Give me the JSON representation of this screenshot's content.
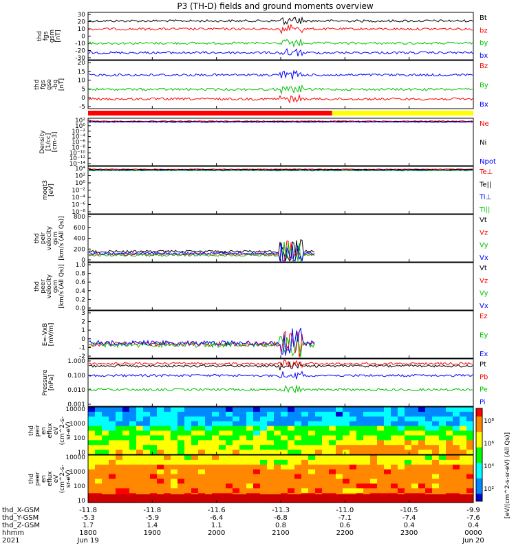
{
  "chart_data": {
    "title": "P3 (TH-D) fields and ground moments overview",
    "x_axis": {
      "rows": [
        {
          "label": "thd_X-GSM",
          "values": [
            "-11.8",
            "-11.8",
            "-11.6",
            "-11.3",
            "-11.0",
            "-10.5",
            "-9.9"
          ]
        },
        {
          "label": "thd_Y-GSM",
          "values": [
            "-5.3",
            "-5.9",
            "-6.4",
            "-6.8",
            "-7.1",
            "-7.4",
            "-7.6"
          ]
        },
        {
          "label": "thd_Z-GSM",
          "values": [
            "1.7",
            "1.4",
            "1.1",
            "0.8",
            "0.6",
            "0.4",
            "0.4"
          ]
        },
        {
          "label": "hhmm",
          "values": [
            "1800",
            "1900",
            "2000",
            "2100",
            "2200",
            "2300",
            "0000"
          ]
        }
      ],
      "year": "2021",
      "date_start": "Jun 19",
      "date_end": "Jun 20"
    },
    "panels": [
      {
        "ylabel": [
          "thd",
          "fgs",
          "gsm",
          "[nT]"
        ],
        "type": "line",
        "ticks": [
          "30",
          "20",
          "10",
          "0",
          "-10",
          "-20",
          "-30"
        ],
        "ylim": [
          -30,
          30
        ],
        "legend": [
          {
            "name": "Bt",
            "color": "#000000"
          },
          {
            "name": "bz",
            "color": "#ff0000"
          },
          {
            "name": "by",
            "color": "#00c000"
          },
          {
            "name": "bx",
            "color": "#0000ff"
          }
        ]
      },
      {
        "ylabel": [
          "thd",
          "fgs",
          "gse",
          "-bg",
          "[nT]"
        ],
        "type": "line",
        "ticks": [
          "20",
          "15",
          "10",
          "5",
          "0",
          "-5"
        ],
        "ylim": [
          -8,
          20
        ],
        "legend": [
          {
            "name": "Bz",
            "color": "#ff0000"
          },
          {
            "name": "By",
            "color": "#00c000"
          },
          {
            "name": "Bx",
            "color": "#0000ff"
          }
        ]
      },
      {
        "ylabel": [
          "Density",
          "[1/cc]",
          "[cm-3]"
        ],
        "type": "line",
        "scale": "log",
        "ticks": [
          "10²",
          "10⁰",
          "10⁻²",
          "10⁻⁴",
          "10⁻⁶",
          "10⁻⁸",
          "10⁻¹⁰",
          "10⁻¹²",
          "10⁻¹⁴"
        ],
        "legend": [
          {
            "name": "Ne",
            "color": "#ff0000"
          },
          {
            "name": "Ni",
            "color": "#000000"
          },
          {
            "name": "Npot",
            "color": "#0000ff"
          }
        ]
      },
      {
        "ylabel": [
          "moqt3",
          "[eV]"
        ],
        "type": "line",
        "scale": "log",
        "ticks": [
          "10⁴",
          "10²",
          "10⁰",
          "10⁻²",
          "10⁻⁴",
          "10⁻⁶",
          "10⁻⁸"
        ],
        "legend": [
          {
            "name": "Te⊥",
            "color": "#ff0000"
          },
          {
            "name": "Te||",
            "color": "#000000"
          },
          {
            "name": "Ti⊥",
            "color": "#0000ff"
          },
          {
            "name": "Ti||",
            "color": "#00c000"
          }
        ]
      },
      {
        "ylabel": [
          "thd",
          "peir",
          "velocity",
          "gsm",
          "[km/s (All Qs)]"
        ],
        "type": "line",
        "ticks": [
          "800",
          "600",
          "400",
          "200",
          "0"
        ],
        "ylim": [
          -40,
          800
        ],
        "legend": [
          {
            "name": "Vt",
            "color": "#000000"
          },
          {
            "name": "Vz",
            "color": "#ff0000"
          },
          {
            "name": "Vy",
            "color": "#00c000"
          },
          {
            "name": "Vx",
            "color": "#0000ff"
          }
        ]
      },
      {
        "ylabel": [
          "thd",
          "peer",
          "velocity",
          "gsm",
          "[km/s (All Qs)]"
        ],
        "type": "line",
        "ticks": [
          "1.0",
          "0.8",
          "0.6",
          "0.4",
          "0.2",
          "0.0"
        ],
        "ylim": [
          0,
          1
        ],
        "legend": [
          {
            "name": "Vt",
            "color": "#000000"
          },
          {
            "name": "Vz",
            "color": "#ff0000"
          },
          {
            "name": "Vy",
            "color": "#00c000"
          },
          {
            "name": "Vx",
            "color": "#0000ff"
          }
        ]
      },
      {
        "ylabel": [
          "E=-VxB",
          "[mV/m]"
        ],
        "type": "line",
        "ticks": [
          "3",
          "2",
          "1",
          "0",
          "-1",
          "-2"
        ],
        "ylim": [
          -2,
          3
        ],
        "legend": [
          {
            "name": "Ez",
            "color": "#ff0000"
          },
          {
            "name": "Ey",
            "color": "#00c000"
          },
          {
            "name": "Ex",
            "color": "#0000ff"
          }
        ]
      },
      {
        "ylabel": [
          "Pressure",
          "[nPa]"
        ],
        "type": "line",
        "scale": "log",
        "ticks": [
          "1.000",
          "0.100",
          "0.010",
          "0.001"
        ],
        "legend": [
          {
            "name": "Pt",
            "color": "#000000"
          },
          {
            "name": "Pb",
            "color": "#ff0000"
          },
          {
            "name": "Pe",
            "color": "#00c000"
          },
          {
            "name": "Pi",
            "color": "#0000ff"
          }
        ]
      },
      {
        "ylabel": [
          "thd",
          "peir",
          "en",
          "eflux",
          "eV",
          "(cm^2-s-",
          "sr-eV)"
        ],
        "type": "heatmap",
        "ticks": [
          "10000",
          "1000",
          "100",
          "10"
        ]
      },
      {
        "ylabel": [
          "thd",
          "peer",
          "en",
          "eflux",
          "eV",
          "(cm^2-s-",
          "sr-eV)"
        ],
        "type": "heatmap",
        "ticks": [
          "10000",
          "1000",
          "100",
          "10"
        ]
      }
    ],
    "colorbar": {
      "label": "[eV/(cm^2-s-sr-eV) (All Qs)]",
      "ticks": [
        "10⁸",
        "10⁶",
        "10⁴",
        "10²"
      ]
    },
    "status_bar": {
      "segments": [
        {
          "from_hhmm": "1800",
          "to_hhmm": "2148",
          "color": "#ff0000"
        },
        {
          "from_hhmm": "2148",
          "to_hhmm": "0000",
          "color": "#ffff00"
        }
      ]
    },
    "colors": {
      "heatmap_scale": [
        "#0000cc",
        "#0088ff",
        "#00ffff",
        "#00ff00",
        "#ffff00",
        "#ff8800",
        "#ff0000"
      ]
    }
  }
}
